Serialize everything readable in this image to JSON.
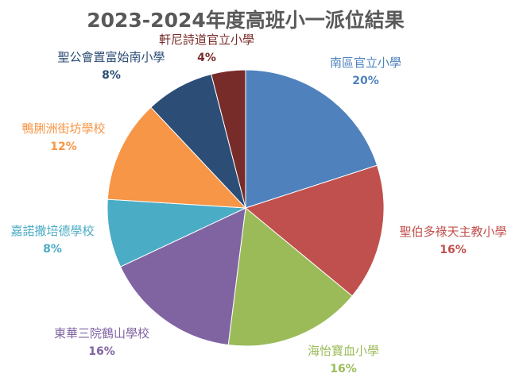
{
  "chart_data": {
    "type": "pie",
    "title": "2023-2024年度高班小一派位結果",
    "slices": [
      {
        "label": "南區官立小學",
        "value": 20,
        "percent_label": "20%",
        "color": "#4F81BD"
      },
      {
        "label": "聖伯多祿天主教小學",
        "value": 16,
        "percent_label": "16%",
        "color": "#C0504D"
      },
      {
        "label": "海怡寶血小學",
        "value": 16,
        "percent_label": "16%",
        "color": "#9BBB59"
      },
      {
        "label": "東華三院鶴山學校",
        "value": 16,
        "percent_label": "16%",
        "color": "#8064A2"
      },
      {
        "label": "嘉諾撒培德學校",
        "value": 8,
        "percent_label": "8%",
        "color": "#4BACC6"
      },
      {
        "label": "鴨脷洲街坊學校",
        "value": 12,
        "percent_label": "12%",
        "color": "#F79646"
      },
      {
        "label": "聖公會置富始南小學",
        "value": 8,
        "percent_label": "8%",
        "color": "#2C4D75"
      },
      {
        "label": "軒尼詩道官立小學",
        "value": 4,
        "percent_label": "4%",
        "color": "#772C2A"
      }
    ],
    "start_angle": "12 o'clock",
    "direction": "clockwise",
    "legend": "none",
    "data_labels": "outside"
  }
}
